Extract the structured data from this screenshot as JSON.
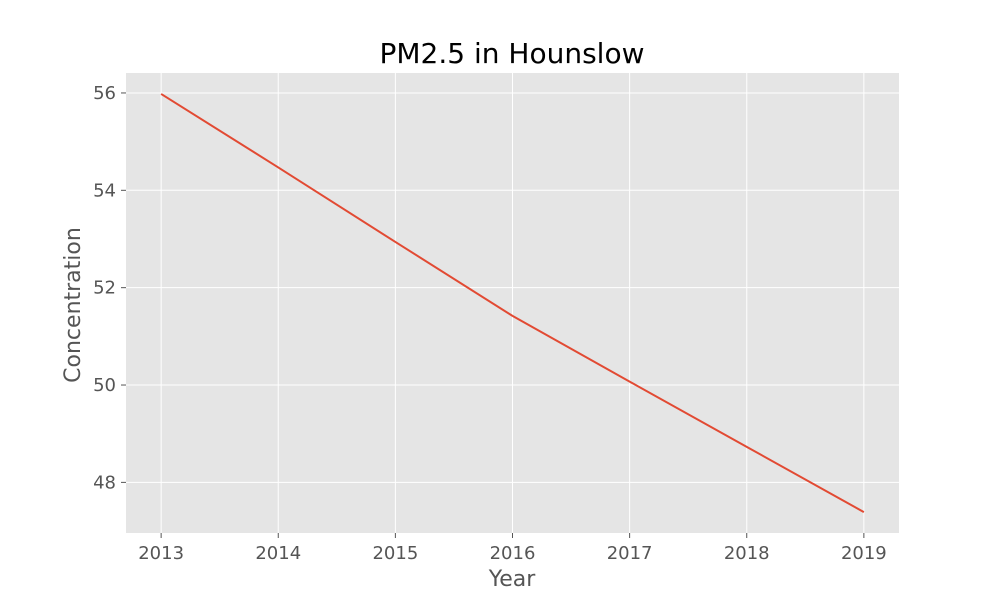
{
  "chart_data": {
    "type": "line",
    "title": "PM2.5 in Hounslow",
    "xlabel": "Year",
    "ylabel": "Concentration",
    "x": [
      2013,
      2014,
      2015,
      2016,
      2017,
      2018,
      2019
    ],
    "series": [
      {
        "values": [
          55.98,
          54.47,
          52.94,
          51.42,
          50.07,
          48.73,
          47.39
        ]
      }
    ],
    "xlim": [
      2012.7,
      2019.3
    ],
    "ylim": [
      46.96,
      56.41
    ],
    "xticks": [
      2013,
      2014,
      2015,
      2016,
      2017,
      2018,
      2019
    ],
    "yticks": [
      48,
      50,
      52,
      54,
      56
    ],
    "grid": true,
    "colors": {
      "plot_background": "#E5E5E5",
      "grid": "#FFFFFF",
      "line": "#E24A33"
    }
  }
}
